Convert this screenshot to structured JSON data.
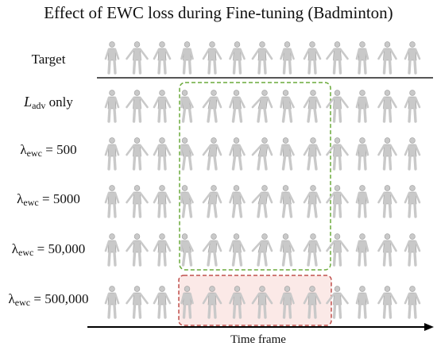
{
  "title": "Effect of EWC loss during Fine-tuning (Badminton)",
  "rows": [
    {
      "id": "target",
      "prefix": "Target",
      "script": "",
      "subscript": "",
      "suffix": ""
    },
    {
      "id": "adv-only",
      "prefix": "",
      "script": "L",
      "subscript": "adv",
      "suffix": " only"
    },
    {
      "id": "ewc-500",
      "prefix": "λ",
      "script": "",
      "subscript": "ewc",
      "suffix": " = 500"
    },
    {
      "id": "ewc-5000",
      "prefix": "λ",
      "script": "",
      "subscript": "ewc",
      "suffix": " = 5000"
    },
    {
      "id": "ewc-50000",
      "prefix": "λ",
      "script": "",
      "subscript": "ewc",
      "suffix": " = 50,000"
    },
    {
      "id": "ewc-500000",
      "prefix": "λ",
      "script": "",
      "subscript": "ewc",
      "suffix": " = 500,000"
    }
  ],
  "frames_per_row": 13,
  "axis_label": "Time frame",
  "highlight_colors": {
    "green_box": "#6aaa3a",
    "red_box": "#c0504d",
    "red_fill": "#fbe9e7",
    "figure": "#c9c9c9"
  }
}
